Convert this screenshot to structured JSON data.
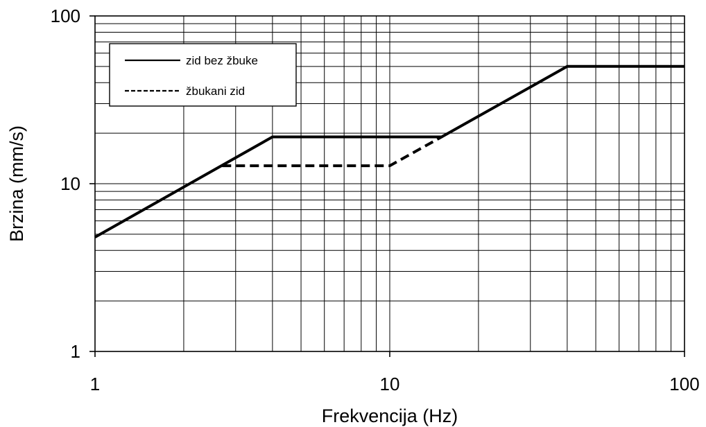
{
  "chart_data": {
    "type": "line",
    "title": "",
    "xlabel": "Frekvencija (Hz)",
    "ylabel": "Brzina (mm/s)",
    "x_scale": "log",
    "y_scale": "log",
    "xlim": [
      1,
      100
    ],
    "ylim": [
      1,
      100
    ],
    "x_ticks": [
      "1",
      "10",
      "100"
    ],
    "y_ticks": [
      "100",
      "10",
      "1"
    ],
    "grid": true,
    "legend_position": "top-left",
    "series": [
      {
        "name": "zid bez žbuke",
        "style": "solid",
        "color": "#000000",
        "x": [
          1,
          4,
          15,
          40,
          100
        ],
        "y": [
          4.8,
          19,
          19,
          50,
          50
        ]
      },
      {
        "name": "žbukani zid",
        "style": "dashed",
        "color": "#000000",
        "x": [
          2.7,
          10,
          15
        ],
        "y": [
          12.8,
          12.8,
          19
        ]
      }
    ]
  }
}
